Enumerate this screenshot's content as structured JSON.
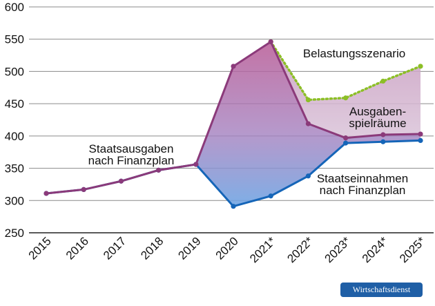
{
  "chart_data": {
    "type": "line",
    "title": "",
    "xlabel": "",
    "ylabel": "",
    "ylim": [
      250,
      600
    ],
    "yticks": [
      250,
      300,
      350,
      400,
      450,
      500,
      550,
      600
    ],
    "categories": [
      "2015",
      "2016",
      "2017",
      "2018",
      "2019",
      "2020",
      "2021*",
      "2022*",
      "2023*",
      "2024*",
      "2025*"
    ],
    "grid": "horizontal",
    "series": [
      {
        "name": "Staatsausgaben nach Finanzplan",
        "color": "#8b3a7a",
        "values": [
          311,
          317,
          330,
          347,
          356,
          508,
          546,
          419,
          397,
          402,
          403
        ]
      },
      {
        "name": "Staatseinnahmen nach Finanzplan",
        "color": "#1565b8",
        "values": [
          311,
          317,
          330,
          347,
          356,
          291,
          307,
          338,
          389,
          391,
          393
        ]
      },
      {
        "name": "Belastungsszenario",
        "color": "#8cbf26",
        "style": "dotted",
        "values": [
          null,
          null,
          null,
          null,
          null,
          null,
          546,
          456,
          459,
          485,
          508
        ]
      }
    ],
    "annotations": [
      {
        "id": "ausgaben",
        "lines": [
          "Staatsausgaben",
          "nach Finanzplan"
        ]
      },
      {
        "id": "einnahmen",
        "lines": [
          "Staatseinnahmen",
          "nach Finanzplan"
        ]
      },
      {
        "id": "belastung",
        "lines": [
          "Belastungsszenario"
        ]
      },
      {
        "id": "spielraeume",
        "lines": [
          "Ausgaben-",
          "spielräume"
        ]
      }
    ]
  },
  "branding": {
    "label": "Wirtschaftsdienst",
    "color": "#1f5fa6"
  }
}
